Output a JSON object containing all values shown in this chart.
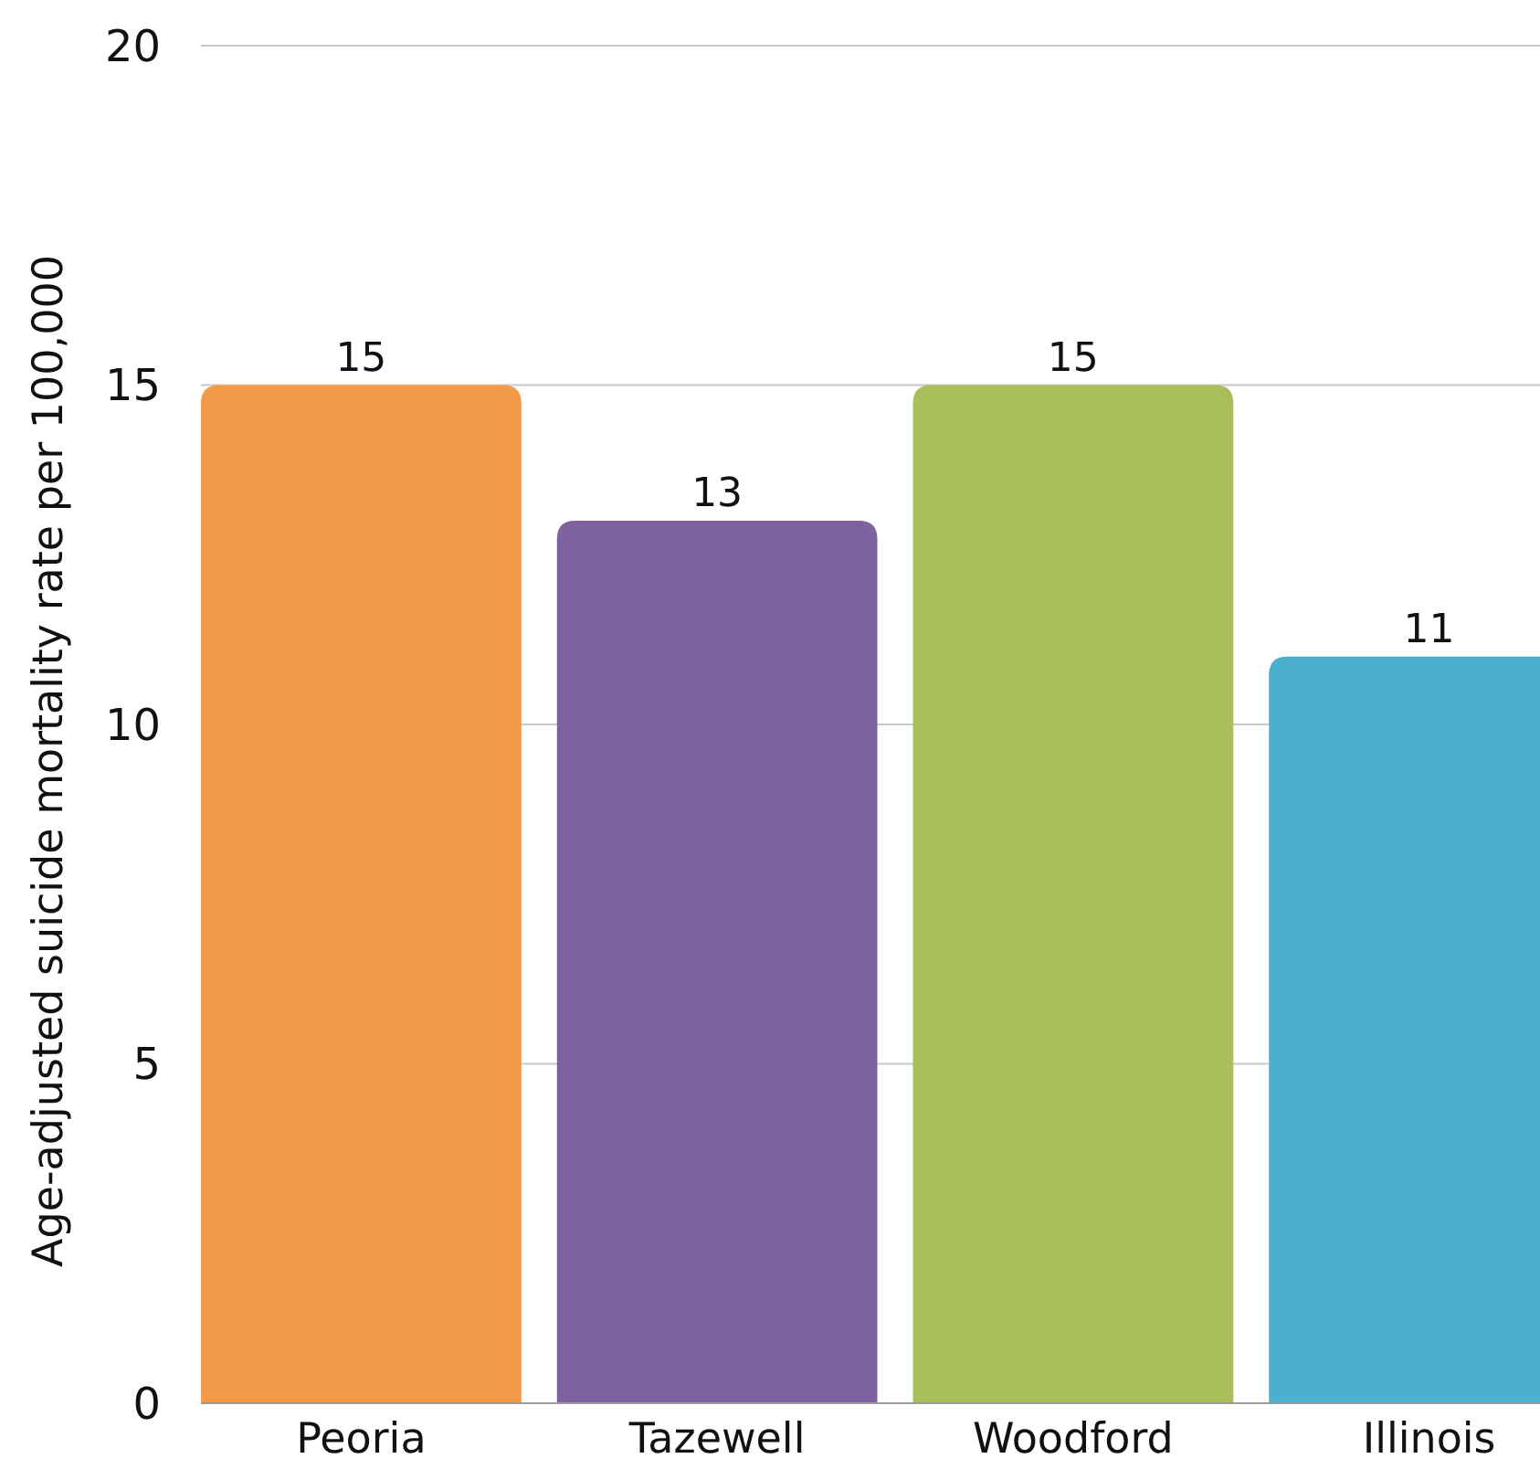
{
  "chart_data": {
    "type": "bar",
    "ylabel": "Age-adjusted suicide mortality rate per 100,000",
    "categories": [
      "Peoria",
      "Tazewell",
      "Woodford",
      "Illinois"
    ],
    "values": [
      15,
      13,
      15,
      11
    ],
    "colors": [
      "#f39a48",
      "#7e62a0",
      "#a8be5a",
      "#4bafce"
    ],
    "ylim": [
      0,
      20
    ],
    "yticks": [
      0,
      5,
      10,
      15,
      20
    ],
    "grid": "y",
    "data_labels": true
  }
}
